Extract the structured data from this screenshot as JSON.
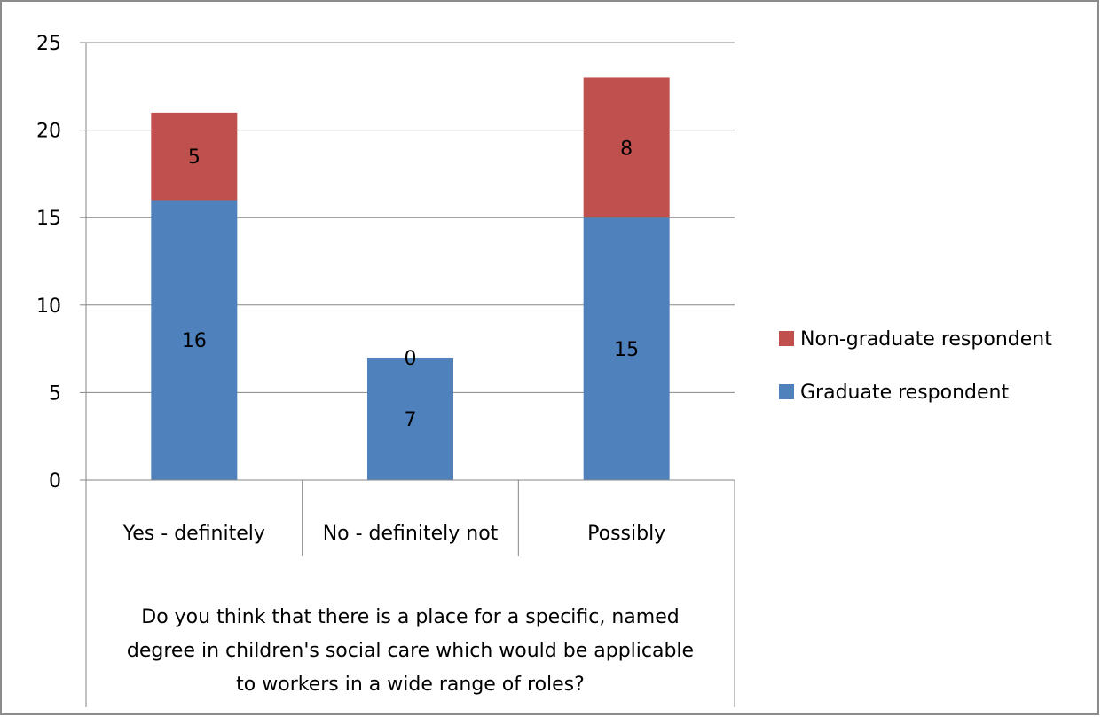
{
  "chart_data": {
    "type": "bar",
    "stacked": true,
    "categories": [
      "Yes - definitely",
      "No - definitely not",
      "Possibly"
    ],
    "series": [
      {
        "name": "Graduate respondent",
        "values": [
          16,
          7,
          15
        ],
        "data_labels": [
          "16",
          "7",
          "15"
        ],
        "color": "#4f81bd"
      },
      {
        "name": "Non-graduate respondent",
        "values": [
          5,
          0,
          8
        ],
        "data_labels": [
          "5",
          "0",
          "8"
        ],
        "color": "#c0504d"
      }
    ],
    "title": "",
    "xlabel": "Do you think that there is a place for a specific, named degree in children's social care which would be applicable to workers in a wide range of roles?",
    "xlabel_lines": [
      "Do you think that there is a place for a specific, named",
      "degree in children's social care which would be applicable",
      "to workers in a wide range of roles?"
    ],
    "ylabel": "",
    "ylim": [
      0,
      25
    ],
    "yticks": [
      0,
      5,
      10,
      15,
      20,
      25
    ],
    "ytick_labels": [
      "0",
      "5",
      "10",
      "15",
      "20",
      "25"
    ],
    "grid": true,
    "legend_position": "right",
    "legend_entries": [
      "Non-graduate respondent",
      "Graduate respondent"
    ],
    "colors": {
      "gridline": "#868686",
      "frame": "#8c8c8c"
    }
  }
}
